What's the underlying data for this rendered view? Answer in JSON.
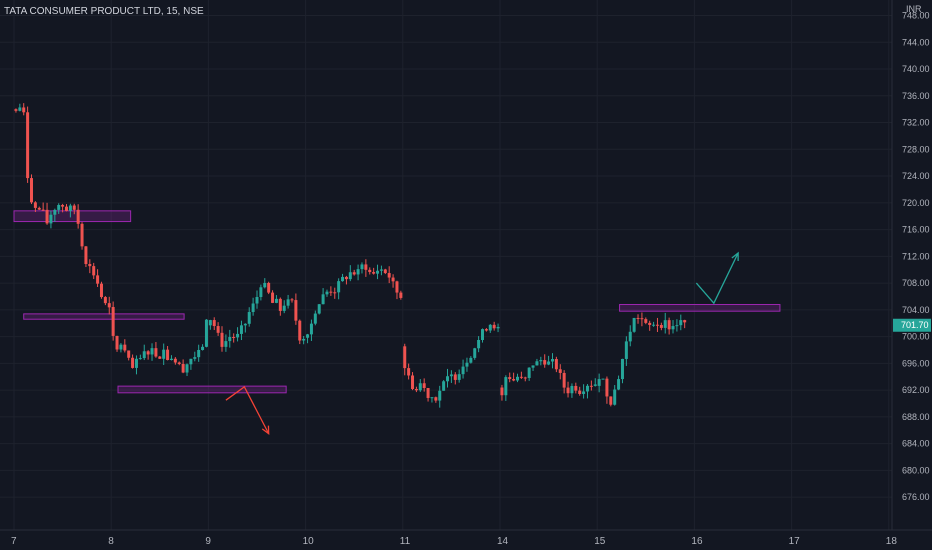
{
  "header": {
    "title": "TATA CONSUMER PRODUCT LTD, 15, NSE",
    "currency": "INR"
  },
  "chart_data": {
    "type": "candlestick",
    "title": "TATA CONSUMER PRODUCT LTD, 15, NSE",
    "ylabel": "INR",
    "ylim": [
      673.5,
      748.5
    ],
    "y_ticks": [
      748,
      744,
      740,
      736,
      732,
      728,
      724,
      720,
      716,
      712,
      708,
      704,
      700,
      696,
      692,
      688,
      684,
      680,
      676
    ],
    "x_ticks": [
      "7",
      "8",
      "9",
      "10",
      "11",
      "14",
      "15",
      "16",
      "17",
      "18"
    ],
    "current_price": "701.70",
    "colors": {
      "up": "#26a69a",
      "down": "#ef5350",
      "zone": "#9c27b0",
      "background": "#131722",
      "grid": "#1e222d"
    },
    "sessions": [
      {
        "label": "7",
        "path": [
          [
            0,
            734
          ],
          [
            0.3,
            733
          ],
          [
            0.6,
            735
          ],
          [
            1.2,
            733
          ],
          [
            1.6,
            724
          ],
          [
            2.2,
            719
          ],
          [
            3.0,
            719
          ],
          [
            3.6,
            717
          ],
          [
            4.2,
            719
          ],
          [
            5.0,
            720
          ],
          [
            5.6,
            719
          ],
          [
            6.4,
            719
          ],
          [
            7.0,
            716
          ],
          [
            7.4,
            712
          ],
          [
            8.1,
            710
          ],
          [
            8.6,
            709
          ],
          [
            9.2,
            706
          ],
          [
            9.8,
            704
          ],
          [
            10.0,
            704
          ]
        ]
      },
      {
        "label": "8",
        "path": [
          [
            0,
            704
          ],
          [
            0.3,
            700
          ],
          [
            0.8,
            698
          ],
          [
            1.2,
            699
          ],
          [
            1.8,
            697
          ],
          [
            2.3,
            695
          ],
          [
            2.8,
            696
          ],
          [
            3.4,
            697
          ],
          [
            3.9,
            698
          ],
          [
            4.5,
            698
          ],
          [
            5.0,
            697
          ],
          [
            5.6,
            698
          ],
          [
            6.0,
            697
          ],
          [
            6.4,
            697
          ],
          [
            7.0,
            696
          ],
          [
            7.4,
            695
          ],
          [
            8.0,
            696
          ],
          [
            8.5,
            697
          ],
          [
            9.0,
            697
          ],
          [
            9.5,
            698
          ],
          [
            10.0,
            702
          ]
        ]
      },
      {
        "label": "9",
        "path": [
          [
            0,
            702
          ],
          [
            0.3,
            703
          ],
          [
            0.7,
            702
          ],
          [
            1.0,
            701
          ],
          [
            1.4,
            699
          ],
          [
            1.8,
            699
          ],
          [
            2.4,
            700
          ],
          [
            2.8,
            700
          ],
          [
            3.2,
            700
          ],
          [
            3.6,
            701
          ],
          [
            4.0,
            702
          ],
          [
            4.5,
            704
          ],
          [
            5.0,
            705
          ],
          [
            5.6,
            708
          ],
          [
            6.2,
            707
          ],
          [
            6.8,
            705
          ],
          [
            7.2,
            705
          ],
          [
            7.6,
            704
          ],
          [
            8.0,
            705
          ],
          [
            8.4,
            705
          ],
          [
            9.0,
            705
          ],
          [
            9.4,
            700
          ],
          [
            10.0,
            700
          ]
        ]
      },
      {
        "label": "10",
        "path": [
          [
            0,
            700
          ],
          [
            0.4,
            701
          ],
          [
            0.8,
            702
          ],
          [
            1.2,
            704
          ],
          [
            1.6,
            705
          ],
          [
            2.0,
            706
          ],
          [
            2.6,
            707
          ],
          [
            3.2,
            707
          ],
          [
            3.8,
            708
          ],
          [
            4.2,
            709
          ],
          [
            4.6,
            709
          ],
          [
            5.0,
            710
          ],
          [
            5.4,
            709
          ],
          [
            5.8,
            710
          ],
          [
            6.2,
            711
          ],
          [
            6.6,
            710
          ],
          [
            7.0,
            709
          ],
          [
            7.6,
            710
          ],
          [
            8.2,
            710
          ],
          [
            8.8,
            709
          ],
          [
            9.4,
            707
          ],
          [
            10.0,
            706
          ]
        ]
      },
      {
        "label": "11",
        "path": [
          [
            0,
            699
          ],
          [
            0.3,
            696
          ],
          [
            0.7,
            694
          ],
          [
            1.1,
            693
          ],
          [
            1.6,
            692
          ],
          [
            2.0,
            693
          ],
          [
            2.5,
            692
          ],
          [
            3.0,
            691
          ],
          [
            3.6,
            691
          ],
          [
            4.0,
            692
          ],
          [
            4.5,
            693
          ],
          [
            5.0,
            694
          ],
          [
            5.5,
            694
          ],
          [
            6.0,
            695
          ],
          [
            6.5,
            696
          ],
          [
            7.0,
            697
          ],
          [
            7.4,
            698
          ],
          [
            7.8,
            699
          ],
          [
            8.2,
            700
          ],
          [
            8.6,
            701
          ],
          [
            9.0,
            702
          ],
          [
            9.5,
            702
          ],
          [
            10.0,
            701
          ]
        ]
      },
      {
        "label": "14",
        "path": [
          [
            0,
            692
          ],
          [
            0.3,
            690
          ],
          [
            0.6,
            693
          ],
          [
            1.0,
            695
          ],
          [
            1.4,
            693
          ],
          [
            1.8,
            694
          ],
          [
            2.2,
            694
          ],
          [
            2.6,
            693
          ],
          [
            3.0,
            694
          ],
          [
            3.4,
            696
          ],
          [
            3.8,
            696
          ],
          [
            4.2,
            696
          ],
          [
            4.6,
            697
          ],
          [
            5.0,
            696
          ],
          [
            5.4,
            696
          ],
          [
            5.8,
            696
          ],
          [
            6.2,
            695
          ],
          [
            6.6,
            693
          ],
          [
            7.0,
            692
          ],
          [
            7.4,
            692
          ],
          [
            7.8,
            693
          ],
          [
            8.2,
            692
          ],
          [
            8.6,
            692
          ],
          [
            9.0,
            693
          ],
          [
            9.4,
            693
          ],
          [
            10.0,
            693
          ]
        ]
      },
      {
        "label": "15",
        "path": [
          [
            0,
            693
          ],
          [
            0.3,
            694
          ],
          [
            0.6,
            695
          ],
          [
            1.0,
            692
          ],
          [
            1.4,
            691
          ],
          [
            1.8,
            690
          ],
          [
            2.0,
            692
          ],
          [
            2.4,
            694
          ],
          [
            2.7,
            696
          ],
          [
            3.0,
            698
          ],
          [
            3.4,
            700
          ],
          [
            3.8,
            702
          ],
          [
            4.2,
            703
          ],
          [
            4.6,
            703
          ],
          [
            5.0,
            702
          ],
          [
            5.4,
            701
          ],
          [
            5.8,
            702
          ],
          [
            6.2,
            702
          ],
          [
            6.6,
            702
          ],
          [
            7.0,
            702
          ],
          [
            7.4,
            702
          ],
          [
            7.8,
            701
          ],
          [
            8.2,
            702
          ],
          [
            8.6,
            702
          ],
          [
            9.0,
            702
          ]
        ]
      }
    ],
    "zones": [
      {
        "x": [
          0,
          1.2
        ],
        "y": [
          717.2,
          718.8
        ]
      },
      {
        "x": [
          0.1,
          1.75
        ],
        "y": [
          702.6,
          703.4
        ]
      },
      {
        "x": [
          1.07,
          2.8
        ],
        "y": [
          691.6,
          692.6
        ]
      },
      {
        "x": [
          6.23,
          7.88
        ],
        "y": [
          703.8,
          704.8
        ]
      }
    ],
    "annotations": [
      {
        "type": "arrow",
        "color": "#f44336",
        "points": [
          [
            2.18,
            690.5
          ],
          [
            2.37,
            692.5
          ],
          [
            2.62,
            685.5
          ]
        ]
      },
      {
        "type": "arrow",
        "color": "#26a69a",
        "points": [
          [
            7.02,
            708
          ],
          [
            7.2,
            705
          ],
          [
            7.45,
            712.5
          ]
        ]
      }
    ]
  }
}
